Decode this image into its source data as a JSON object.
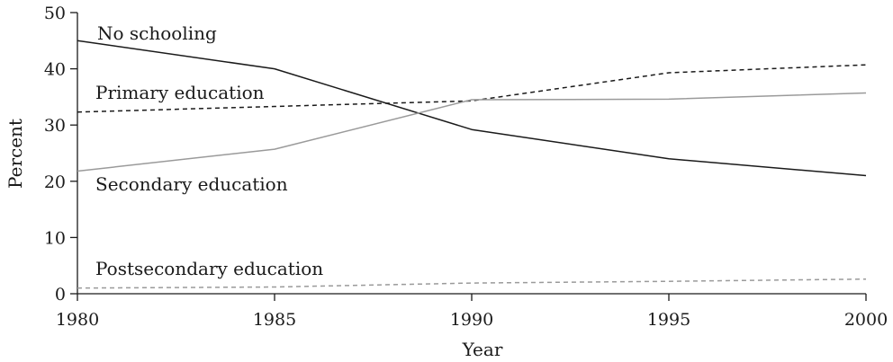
{
  "chart_data": {
    "type": "line",
    "xlabel": "Year",
    "ylabel": "Percent",
    "xlim": [
      1980,
      2000
    ],
    "ylim": [
      0,
      50
    ],
    "xticks": [
      "1980",
      "1985",
      "1990",
      "1995",
      "2000"
    ],
    "yticks": [
      "0",
      "10",
      "20",
      "30",
      "40",
      "50"
    ],
    "grid": false,
    "legend": "inline labels",
    "x": [
      1980,
      1985,
      1990,
      1995,
      2000
    ],
    "series": [
      {
        "name": "No schooling",
        "values": [
          45,
          40,
          29.2,
          24,
          21
        ],
        "color": "#1a1a1a",
        "dash": "solid"
      },
      {
        "name": "Primary education",
        "values": [
          32.3,
          33.3,
          34.3,
          39.3,
          40.7
        ],
        "color": "#1a1a1a",
        "dash": "dashed"
      },
      {
        "name": "Secondary education",
        "values": [
          21.8,
          25.7,
          34.5,
          34.6,
          35.7
        ],
        "color": "#9a9a9a",
        "dash": "solid"
      },
      {
        "name": "Postsecondary education",
        "values": [
          1,
          1.2,
          1.9,
          2.2,
          2.6
        ],
        "color": "#9a9a9a",
        "dash": "dashed"
      }
    ]
  }
}
